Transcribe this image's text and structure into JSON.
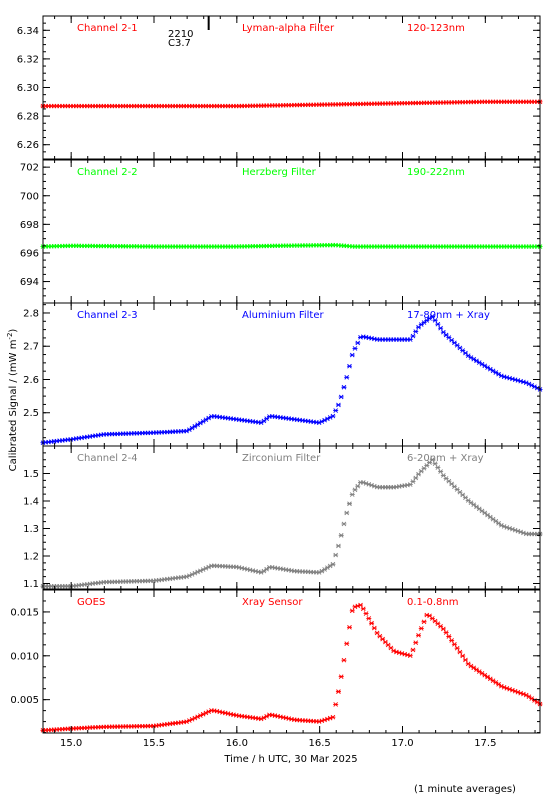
{
  "chart_data": {
    "type": "scatter",
    "x_range": [
      14.83,
      17.83
    ],
    "x_ticks": [
      15.0,
      15.5,
      16.0,
      16.5,
      17.0,
      17.5
    ],
    "x_tick_labels": [
      "15.0",
      "15.5",
      "16.0",
      "16.5",
      "17.0",
      "17.5"
    ],
    "xlabel": "Time / h UTC, 30 Mar 2025",
    "ylabel": "Calibrated Signal / (mW m",
    "ylabel_sup": "-2",
    "ylabel_close": ")",
    "footnote": "(1 minute averages)",
    "marker_annotation": {
      "x": 15.83,
      "line1": "2210",
      "line2": "C3.7"
    },
    "panels": [
      {
        "channel": "Channel 2-1",
        "filter": "Lyman-alpha Filter",
        "band": "120-123nm",
        "color": "#ff0000",
        "ylim": [
          6.25,
          6.35
        ],
        "yticks": [
          6.26,
          6.28,
          6.3,
          6.32,
          6.34
        ],
        "ytick_labels": [
          "6.26",
          "6.28",
          "6.30",
          "6.32",
          "6.34"
        ],
        "data": [
          [
            14.83,
            6.287
          ],
          [
            15.5,
            6.287
          ],
          [
            16.0,
            6.287
          ],
          [
            16.5,
            6.288
          ],
          [
            17.0,
            6.289
          ],
          [
            17.5,
            6.29
          ],
          [
            17.83,
            6.29
          ]
        ]
      },
      {
        "channel": "Channel 2-2",
        "filter": "Herzberg Filter",
        "band": "190-222nm",
        "color": "#00ff00",
        "ylim": [
          692.5,
          702.5
        ],
        "yticks": [
          694,
          696,
          698,
          700,
          702
        ],
        "ytick_labels": [
          "694",
          "696",
          "698",
          "700",
          "702"
        ],
        "data": [
          [
            14.83,
            696.45
          ],
          [
            15.0,
            696.5
          ],
          [
            15.5,
            696.45
          ],
          [
            16.0,
            696.45
          ],
          [
            16.25,
            696.5
          ],
          [
            16.6,
            696.55
          ],
          [
            16.7,
            696.45
          ],
          [
            17.0,
            696.45
          ],
          [
            17.5,
            696.45
          ],
          [
            17.83,
            696.45
          ]
        ]
      },
      {
        "channel": "Channel 2-3",
        "filter": "Aluminium Filter",
        "band": "17-80nm + Xray",
        "color": "#0000ff",
        "ylim": [
          2.4,
          2.83
        ],
        "yticks": [
          2.5,
          2.6,
          2.7,
          2.8
        ],
        "ytick_labels": [
          "2.5",
          "2.6",
          "2.7",
          "2.8"
        ],
        "data": [
          [
            14.83,
            2.41
          ],
          [
            15.0,
            2.42
          ],
          [
            15.2,
            2.435
          ],
          [
            15.5,
            2.44
          ],
          [
            15.7,
            2.445
          ],
          [
            15.85,
            2.49
          ],
          [
            16.0,
            2.48
          ],
          [
            16.15,
            2.47
          ],
          [
            16.2,
            2.49
          ],
          [
            16.35,
            2.48
          ],
          [
            16.5,
            2.47
          ],
          [
            16.58,
            2.49
          ],
          [
            16.62,
            2.53
          ],
          [
            16.66,
            2.6
          ],
          [
            16.7,
            2.68
          ],
          [
            16.75,
            2.73
          ],
          [
            16.85,
            2.72
          ],
          [
            16.95,
            2.72
          ],
          [
            17.05,
            2.72
          ],
          [
            17.1,
            2.76
          ],
          [
            17.18,
            2.79
          ],
          [
            17.25,
            2.74
          ],
          [
            17.4,
            2.67
          ],
          [
            17.6,
            2.61
          ],
          [
            17.75,
            2.59
          ],
          [
            17.83,
            2.57
          ]
        ]
      },
      {
        "channel": "Channel 2-4",
        "filter": "Zirconium Filter",
        "band": "6-20nm + Xray",
        "color": "#808080",
        "ylim": [
          1.08,
          1.6
        ],
        "yticks": [
          1.1,
          1.2,
          1.3,
          1.4,
          1.5
        ],
        "ytick_labels": [
          "1.1",
          "1.2",
          "1.3",
          "1.4",
          "1.5"
        ],
        "data": [
          [
            14.83,
            1.09
          ],
          [
            15.0,
            1.09
          ],
          [
            15.2,
            1.105
          ],
          [
            15.5,
            1.11
          ],
          [
            15.7,
            1.125
          ],
          [
            15.85,
            1.165
          ],
          [
            16.0,
            1.16
          ],
          [
            16.15,
            1.14
          ],
          [
            16.2,
            1.16
          ],
          [
            16.35,
            1.145
          ],
          [
            16.5,
            1.14
          ],
          [
            16.58,
            1.17
          ],
          [
            16.62,
            1.25
          ],
          [
            16.66,
            1.35
          ],
          [
            16.7,
            1.43
          ],
          [
            16.75,
            1.47
          ],
          [
            16.85,
            1.45
          ],
          [
            16.95,
            1.45
          ],
          [
            17.05,
            1.46
          ],
          [
            17.1,
            1.5
          ],
          [
            17.18,
            1.55
          ],
          [
            17.25,
            1.49
          ],
          [
            17.4,
            1.4
          ],
          [
            17.6,
            1.31
          ],
          [
            17.75,
            1.28
          ],
          [
            17.83,
            1.28
          ]
        ]
      },
      {
        "channel": "GOES",
        "filter": "Xray Sensor",
        "band": "0.1-0.8nm",
        "color": "#ff0000",
        "ylim": [
          0.0012,
          0.0175
        ],
        "yticks": [
          0.005,
          0.01,
          0.015
        ],
        "ytick_labels": [
          "0.005",
          "0.010",
          "0.015"
        ],
        "data": [
          [
            14.83,
            0.0015
          ],
          [
            15.0,
            0.0017
          ],
          [
            15.2,
            0.0019
          ],
          [
            15.5,
            0.002
          ],
          [
            15.7,
            0.0025
          ],
          [
            15.85,
            0.0038
          ],
          [
            16.0,
            0.0032
          ],
          [
            16.15,
            0.0028
          ],
          [
            16.2,
            0.0033
          ],
          [
            16.35,
            0.0027
          ],
          [
            16.5,
            0.0025
          ],
          [
            16.58,
            0.003
          ],
          [
            16.62,
            0.0065
          ],
          [
            16.66,
            0.011
          ],
          [
            16.7,
            0.0155
          ],
          [
            16.75,
            0.0158
          ],
          [
            16.85,
            0.0125
          ],
          [
            16.95,
            0.0105
          ],
          [
            17.05,
            0.01
          ],
          [
            17.1,
            0.0125
          ],
          [
            17.15,
            0.0148
          ],
          [
            17.25,
            0.013
          ],
          [
            17.4,
            0.009
          ],
          [
            17.6,
            0.0065
          ],
          [
            17.75,
            0.0055
          ],
          [
            17.83,
            0.0045
          ]
        ]
      }
    ]
  }
}
